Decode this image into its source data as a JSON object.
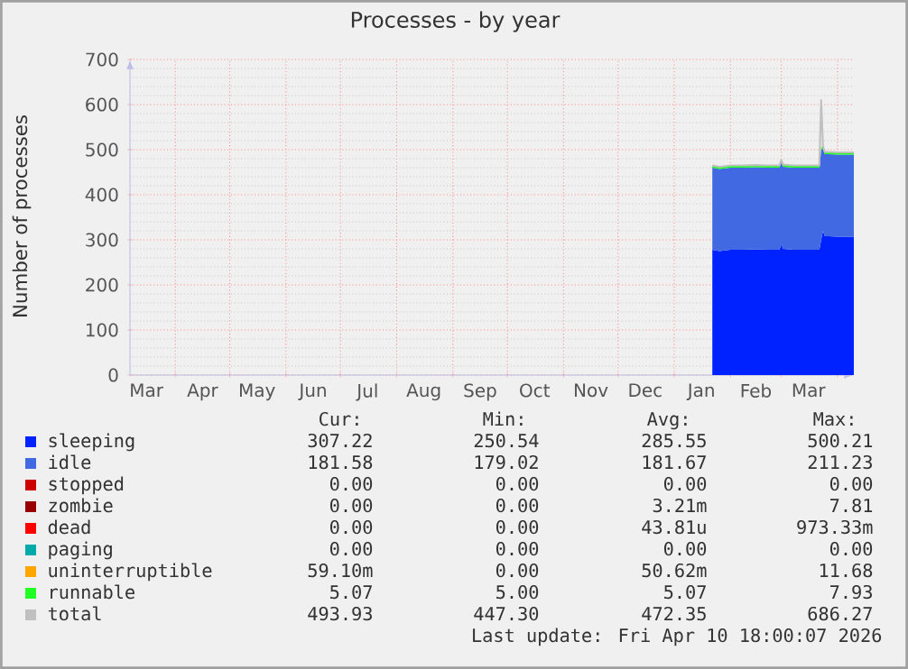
{
  "chart_data": {
    "type": "area",
    "stacked": true,
    "title": "Processes - by year",
    "ylabel": "Number of processes",
    "x": [
      "2026-01-22",
      "2026-01-26",
      "2026-02-01",
      "2026-02-08",
      "2026-02-15",
      "2026-02-22",
      "2026-02-28",
      "2026-03-01",
      "2026-03-02",
      "2026-03-08",
      "2026-03-15",
      "2026-03-22",
      "2026-03-23",
      "2026-03-24",
      "2026-03-25",
      "2026-03-27",
      "2026-04-01",
      "2026-04-05",
      "2026-04-10"
    ],
    "series": [
      {
        "name": "sleeping",
        "color": "#0022ff",
        "values": [
          278,
          275,
          278,
          278,
          279,
          278,
          278,
          290,
          280,
          278,
          278,
          278,
          300,
          320,
          308,
          308,
          307,
          307,
          307
        ]
      },
      {
        "name": "idle",
        "color": "#4169e1",
        "values": [
          182,
          182,
          182,
          182,
          182,
          182,
          182,
          182,
          182,
          182,
          182,
          182,
          200,
          182,
          182,
          182,
          182,
          182,
          182
        ]
      },
      {
        "name": "stopped",
        "color": "#cc0000",
        "values": [
          null,
          null,
          null,
          null,
          null,
          null,
          null,
          null,
          null,
          null,
          null,
          null,
          null,
          null,
          null,
          null,
          null,
          null,
          null
        ]
      },
      {
        "name": "zombie",
        "color": "#990000",
        "values": [
          null,
          null,
          null,
          null,
          null,
          null,
          null,
          null,
          null,
          null,
          null,
          null,
          null,
          null,
          null,
          null,
          null,
          null,
          null
        ]
      },
      {
        "name": "dead",
        "color": "#ff0000",
        "values": [
          null,
          null,
          null,
          null,
          null,
          null,
          null,
          null,
          null,
          null,
          null,
          null,
          null,
          null,
          null,
          null,
          null,
          null,
          null
        ]
      },
      {
        "name": "paging",
        "color": "#00aaaa",
        "values": [
          null,
          null,
          null,
          null,
          null,
          null,
          null,
          null,
          null,
          null,
          null,
          null,
          null,
          null,
          null,
          null,
          null,
          null,
          null
        ]
      },
      {
        "name": "uninterruptible",
        "color": "#ffa500",
        "values": [
          null,
          null,
          null,
          null,
          null,
          null,
          null,
          null,
          null,
          null,
          null,
          null,
          null,
          null,
          null,
          null,
          null,
          null,
          null
        ]
      },
      {
        "name": "runnable",
        "color": "#22ff22",
        "values": [
          5,
          5,
          5,
          5,
          5,
          5,
          5,
          5,
          5,
          5,
          5,
          5,
          5,
          5,
          5,
          5,
          5,
          5,
          5
        ]
      },
      {
        "name": "total",
        "type": "line",
        "color": "#c0c0c0",
        "values": [
          465,
          462,
          465,
          465,
          466,
          465,
          465,
          477,
          467,
          465,
          465,
          465,
          610,
          507,
          495,
          495,
          494,
          494,
          494
        ]
      }
    ],
    "xlim": [
      "2025-03-07",
      "2026-04-10"
    ],
    "xticks": [
      {
        "value": "2025-03-16",
        "label": "Mar"
      },
      {
        "value": "2025-04-01",
        "label": null
      },
      {
        "value": "2025-04-16",
        "label": "Apr"
      },
      {
        "value": "2025-05-01",
        "label": null
      },
      {
        "value": "2025-05-16",
        "label": "May"
      },
      {
        "value": "2025-06-01",
        "label": null
      },
      {
        "value": "2025-06-16",
        "label": "Jun"
      },
      {
        "value": "2025-07-01",
        "label": null
      },
      {
        "value": "2025-07-16",
        "label": "Jul"
      },
      {
        "value": "2025-08-01",
        "label": null
      },
      {
        "value": "2025-08-16",
        "label": "Aug"
      },
      {
        "value": "2025-09-01",
        "label": null
      },
      {
        "value": "2025-09-16",
        "label": "Sep"
      },
      {
        "value": "2025-10-01",
        "label": null
      },
      {
        "value": "2025-10-16",
        "label": "Oct"
      },
      {
        "value": "2025-11-01",
        "label": null
      },
      {
        "value": "2025-11-16",
        "label": "Nov"
      },
      {
        "value": "2025-12-01",
        "label": null
      },
      {
        "value": "2025-12-16",
        "label": "Dec"
      },
      {
        "value": "2026-01-01",
        "label": null
      },
      {
        "value": "2026-01-16",
        "label": "Jan"
      },
      {
        "value": "2026-02-01",
        "label": null
      },
      {
        "value": "2026-02-15",
        "label": "Feb"
      },
      {
        "value": "2026-03-01",
        "label": null
      },
      {
        "value": "2026-03-16",
        "label": "Mar"
      },
      {
        "value": "2026-04-01",
        "label": null
      }
    ],
    "ylim": [
      0,
      700
    ],
    "yticks": [
      0,
      100,
      200,
      300,
      400,
      500,
      600,
      700
    ],
    "grid": true,
    "legend": "bottom",
    "annotations": [
      "Cur:",
      "Min:",
      "Avg:",
      "Max:",
      "307.22",
      "250.54",
      "285.55",
      "500.21",
      "181.58",
      "179.02",
      "181.67",
      "211.23",
      "0.00",
      "0.00",
      "0.00",
      "0.00",
      "0.00",
      "0.00",
      "3.21m",
      "7.81",
      "0.00",
      "0.00",
      "43.81u",
      "973.33m",
      "0.00",
      "0.00",
      "0.00",
      "0.00",
      "59.10m",
      "0.00",
      "50.62m",
      "11.68",
      "5.07",
      "5.00",
      "5.07",
      "7.93",
      "493.93",
      "447.30",
      "472.35",
      "686.27",
      "Last update: Fri Apr 10 18:00:07 2026"
    ]
  }
}
